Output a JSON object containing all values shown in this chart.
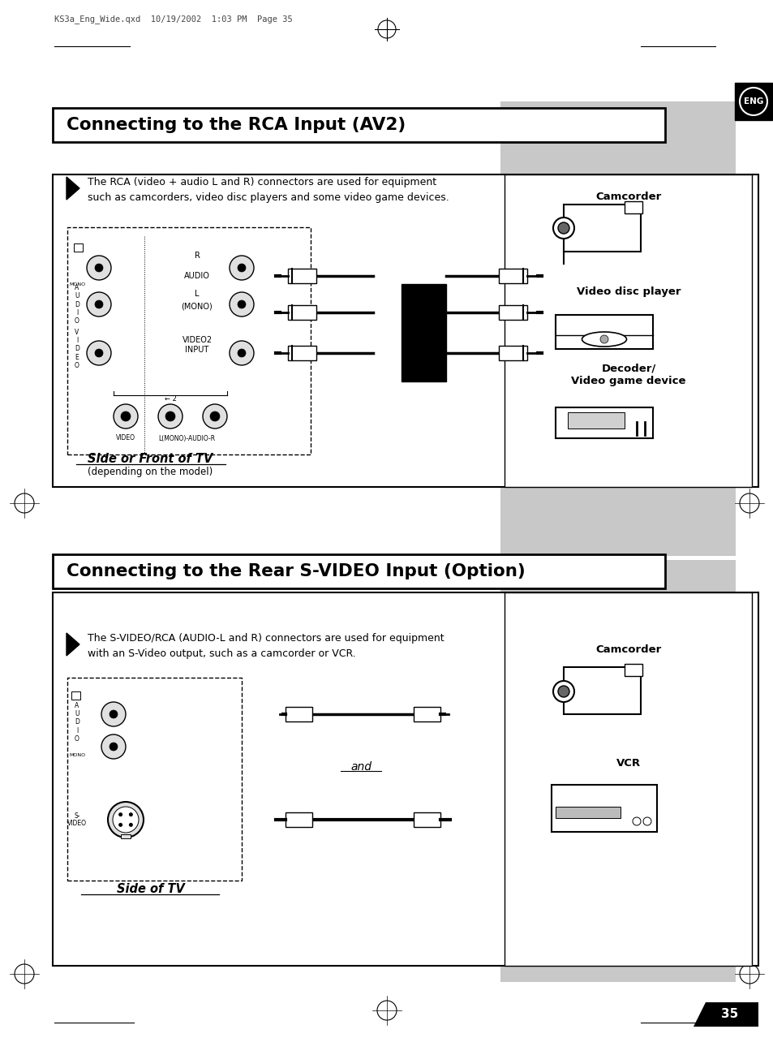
{
  "page_header_text": "KS3a_Eng_Wide.qxd  10/19/2002  1:03 PM  Page 35",
  "section1_title": "Connecting to the RCA Input (AV2)",
  "section2_title": "Connecting to the Rear S-VIDEO Input (Option)",
  "eng_label": "ENG",
  "page_number": "35",
  "bg_color": "#ffffff",
  "gray_band_color": "#c8c8c8",
  "rca_desc": "The RCA (video + audio L and R) connectors are used for equipment\nsuch as camcorders, video disc players and some video game devices.",
  "svideo_desc": "The S-VIDEO/RCA (AUDIO-L and R) connectors are used for equipment\nwith an S-Video output, such as a camcorder or VCR.",
  "side_front_tv": "Side or Front of TV",
  "depending_model": "(depending on the model)",
  "side_tv": "Side of TV",
  "camcorder_label1": "Camcorder",
  "video_disc_label": "Video disc player",
  "decoder_label": "Decoder/\nVideo game device",
  "camcorder_label2": "Camcorder",
  "vcr_label": "VCR",
  "and_label": "and",
  "audio_label": "AUDIO",
  "mono_label": "(MONO)",
  "video2_input_label": "VIDEO2\nINPUT",
  "audio_r_label": "R",
  "audio_l_label": "L",
  "av2_label": "← 2",
  "video_label_bottom": "VIDEO",
  "lmono_audio_r": "L(MONO)-AUDIO-R",
  "svideo_label": "S-\nVIDEO"
}
